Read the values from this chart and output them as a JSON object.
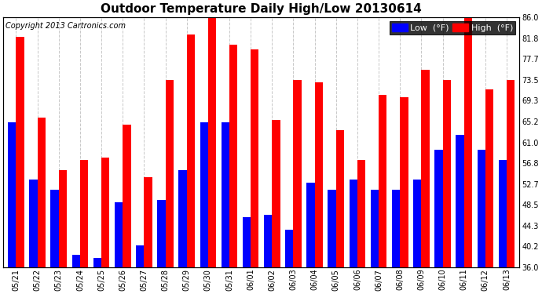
{
  "title": "Outdoor Temperature Daily High/Low 20130614",
  "copyright": "Copyright 2013 Cartronics.com",
  "legend_low": "Low  (°F)",
  "legend_high": "High  (°F)",
  "ylim": [
    36.0,
    86.0
  ],
  "yticks": [
    36.0,
    40.2,
    44.3,
    48.5,
    52.7,
    56.8,
    61.0,
    65.2,
    69.3,
    73.5,
    77.7,
    81.8,
    86.0
  ],
  "dates": [
    "05/21",
    "05/22",
    "05/23",
    "05/24",
    "05/25",
    "05/26",
    "05/27",
    "05/28",
    "05/29",
    "05/30",
    "05/31",
    "06/01",
    "06/02",
    "06/03",
    "06/04",
    "06/05",
    "06/06",
    "06/07",
    "06/08",
    "06/09",
    "06/10",
    "06/11",
    "06/12",
    "06/13"
  ],
  "highs": [
    82.0,
    66.0,
    55.5,
    57.5,
    58.0,
    64.5,
    54.0,
    73.5,
    82.5,
    86.0,
    80.5,
    79.5,
    65.5,
    73.5,
    73.0,
    63.5,
    57.5,
    70.5,
    70.0,
    75.5,
    73.5,
    86.0,
    71.5,
    73.5
  ],
  "lows": [
    65.0,
    53.5,
    51.5,
    38.5,
    38.0,
    49.0,
    40.5,
    49.5,
    55.5,
    65.0,
    65.0,
    46.0,
    46.5,
    43.5,
    53.0,
    51.5,
    53.5,
    51.5,
    51.5,
    53.5,
    59.5,
    62.5,
    59.5,
    57.5
  ],
  "bar_width": 0.38,
  "high_color": "#ff0000",
  "low_color": "#0000ff",
  "bg_color": "#ffffff",
  "plot_bg_color": "#ffffff",
  "grid_color": "#c8c8c8",
  "title_fontsize": 11,
  "copyright_fontsize": 7,
  "tick_fontsize": 7,
  "legend_fontsize": 8
}
